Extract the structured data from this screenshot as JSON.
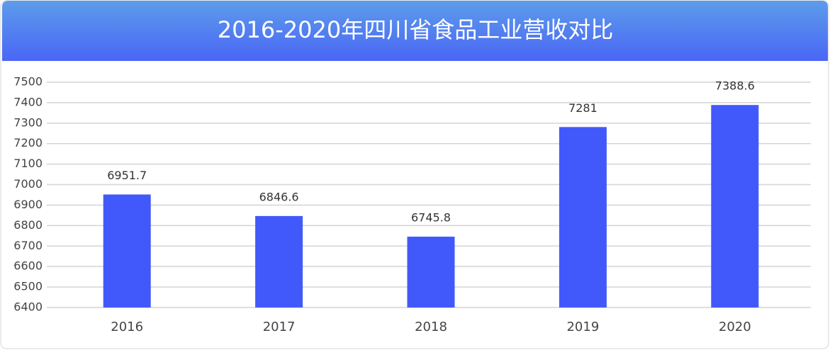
{
  "chart_data": {
    "type": "bar",
    "title": "2016-2020年四川省食品工业营收对比",
    "categories": [
      "2016",
      "2017",
      "2018",
      "2019",
      "2020"
    ],
    "values": [
      6951.7,
      6846.6,
      6745.8,
      7281,
      7388.6
    ],
    "color": "#4159fb",
    "ylim": [
      6400,
      7500
    ],
    "yticks": [
      6400,
      6500,
      6600,
      6700,
      6800,
      6900,
      7000,
      7100,
      7200,
      7300,
      7400,
      7500
    ],
    "grid": true
  }
}
